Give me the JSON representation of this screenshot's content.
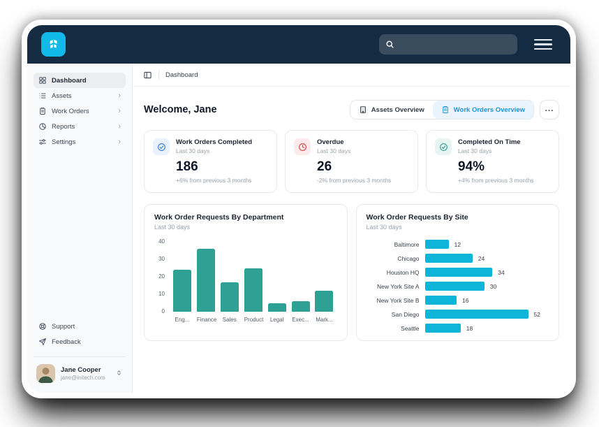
{
  "colors": {
    "topbar_navy": "#152B41",
    "logo_cyan": "#10B9E8",
    "tab_active_bg": "#e9f4fd",
    "tab_active_text": "#1b95d8"
  },
  "topbar": {
    "search_value": "",
    "search_placeholder": ""
  },
  "sidebar": {
    "items": [
      {
        "label": "Dashboard",
        "icon": "grid-icon",
        "active": true,
        "chevron": false
      },
      {
        "label": "Assets",
        "icon": "list-icon",
        "active": false,
        "chevron": true
      },
      {
        "label": "Work Orders",
        "icon": "clipboard-icon",
        "active": false,
        "chevron": true
      },
      {
        "label": "Reports",
        "icon": "pie-chart-icon",
        "active": false,
        "chevron": true
      },
      {
        "label": "Settings",
        "icon": "sliders-icon",
        "active": false,
        "chevron": true
      }
    ],
    "footer_items": [
      {
        "label": "Support",
        "icon": "lifebuoy-icon"
      },
      {
        "label": "Feedback",
        "icon": "paper-plane-icon"
      }
    ],
    "profile": {
      "name": "Jane Cooper",
      "email": "jane@initech.com"
    }
  },
  "breadcrumb": {
    "label": "Dashboard"
  },
  "header": {
    "welcome": "Welcome, Jane",
    "tabs": [
      {
        "label": "Assets Overview",
        "icon": "building-icon",
        "active": false
      },
      {
        "label": "Work Orders Overview",
        "icon": "clipboard-icon",
        "active": true
      }
    ],
    "more_label": "..."
  },
  "stats": [
    {
      "title": "Work Orders Completed",
      "period": "Last 30 days",
      "value": "186",
      "delta": "+6% from previous 3 months",
      "icon": "check-circle-icon",
      "accent": "#4285d8",
      "tint": "#e8f1fc"
    },
    {
      "title": "Overdue",
      "period": "Last 30 days",
      "value": "26",
      "delta": "-2% from previous 3 months",
      "icon": "clock-alert-icon",
      "accent": "#d8504d",
      "tint": "#fcebea"
    },
    {
      "title": "Completed On Time",
      "period": "Last 30 days",
      "value": "94%",
      "delta": "+4% from previous 3 months",
      "icon": "badge-check-icon",
      "accent": "#2ba08f",
      "tint": "#e6f4f2"
    }
  ],
  "chart_data": [
    {
      "type": "bar",
      "title": "Work Order Requests By Department",
      "subtitle": "Last 30 days",
      "categories": [
        "Eng...",
        "Finance",
        "Sales",
        "Product",
        "Legal",
        "Exec...",
        "Mark..."
      ],
      "values": [
        24,
        36,
        17,
        25,
        5,
        6,
        12
      ],
      "xlabel": "",
      "ylabel": "",
      "ylim": [
        0,
        40
      ],
      "yticks": [
        0,
        10,
        20,
        30,
        40
      ],
      "grid": false,
      "legend": "none",
      "bar_color": "#2EA094"
    },
    {
      "type": "bar",
      "orientation": "horizontal",
      "title": "Work Order Requests By Site",
      "subtitle": "Last 30 days",
      "categories": [
        "Baltimore",
        "Chicago",
        "Houston HQ",
        "New York Site A",
        "New York Site B",
        "San Diego",
        "Seattle"
      ],
      "values": [
        12,
        24,
        34,
        30,
        16,
        52,
        18
      ],
      "xlabel": "",
      "ylabel": "",
      "xlim": [
        0,
        56
      ],
      "grid": false,
      "legend": "none",
      "data_labels": true,
      "bar_color": "#0FB5D9"
    }
  ]
}
